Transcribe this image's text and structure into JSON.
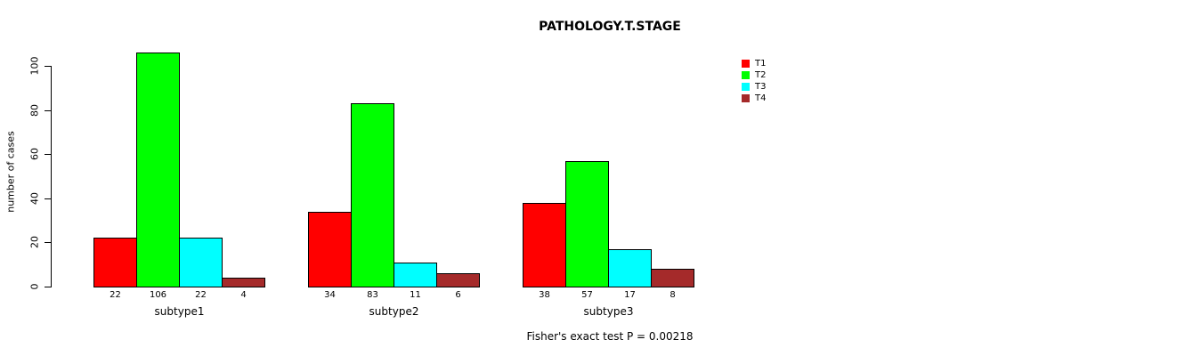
{
  "chart_data": {
    "type": "bar",
    "title": "PATHOLOGY.T.STAGE",
    "ylabel": "number of cases",
    "xlabel": "",
    "categories": [
      "subtype1",
      "subtype2",
      "subtype3"
    ],
    "series": [
      {
        "name": "T1",
        "color": "#FF0000",
        "values": [
          22,
          34,
          38
        ]
      },
      {
        "name": "T2",
        "color": "#00FF00",
        "values": [
          106,
          83,
          57
        ]
      },
      {
        "name": "T3",
        "color": "#00FFFF",
        "values": [
          22,
          11,
          17
        ]
      },
      {
        "name": "T4",
        "color": "#A52A2A",
        "values": [
          4,
          6,
          8
        ]
      }
    ],
    "bar_value_labels": [
      [
        "22",
        "106",
        "22",
        "4"
      ],
      [
        "34",
        "83",
        "11",
        "6"
      ],
      [
        "38",
        "57",
        "17",
        "8"
      ]
    ],
    "yticks": [
      0,
      20,
      40,
      60,
      80,
      100
    ],
    "ylim": [
      0,
      110
    ],
    "grid": false,
    "legend": {
      "position": "top-right",
      "entries": [
        {
          "label": "T1",
          "color": "#FF0000"
        },
        {
          "label": "T2",
          "color": "#00FF00"
        },
        {
          "label": "T3",
          "color": "#00FFFF"
        },
        {
          "label": "T4",
          "color": "#A52A2A"
        }
      ]
    },
    "annotation": "Fisher's exact test P = 0.00218"
  }
}
